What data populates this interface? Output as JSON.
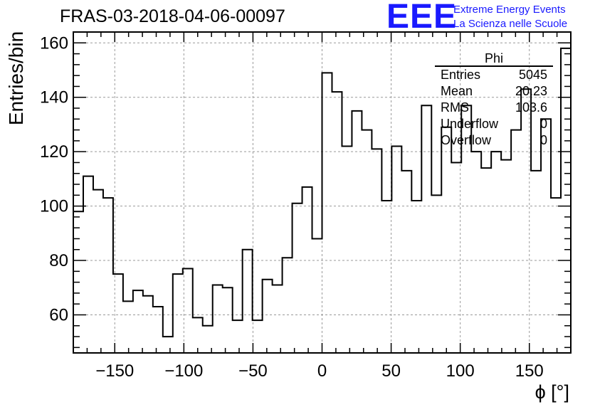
{
  "title": "FRAS-03-2018-04-06-00097",
  "logo": {
    "mark": "EEE",
    "line1": "Extreme Energy Events",
    "line2": "La Scienza nelle Scuole"
  },
  "stats": {
    "name": "Phi",
    "rows": [
      {
        "k": "Entries",
        "v": "5045"
      },
      {
        "k": "Mean",
        "v": "20.23"
      },
      {
        "k": "RMS",
        "v": "103.6"
      },
      {
        "k": "Underflow",
        "v": "0"
      },
      {
        "k": "Overflow",
        "v": "0"
      }
    ]
  },
  "colors": {
    "line": "#000000",
    "grid": "#999999",
    "accent": "#1a1aff"
  },
  "chart_data": {
    "type": "bar",
    "style": "step-histogram",
    "title": "FRAS-03-2018-04-06-00097",
    "xlabel": "ϕ [°]",
    "ylabel": "Entries/bin",
    "xlim": [
      -180,
      180
    ],
    "ylim": [
      46,
      164
    ],
    "bin_width": 7.2,
    "x_ticks": [
      -150,
      -100,
      -50,
      0,
      50,
      100,
      150
    ],
    "x_tick_labels": [
      "−150",
      "−100",
      "−50",
      "0",
      "50",
      "100",
      "150"
    ],
    "y_ticks": [
      60,
      80,
      100,
      120,
      140,
      160
    ],
    "y_tick_labels": [
      "60",
      "80",
      "100",
      "120",
      "140",
      "160"
    ],
    "grid": true,
    "values": [
      98,
      111,
      106,
      103,
      75,
      65,
      69,
      67,
      63,
      52,
      75,
      77,
      59,
      56,
      71,
      70,
      58,
      84,
      58,
      73,
      71,
      81,
      101,
      107,
      88,
      149,
      142,
      122,
      135,
      128,
      121,
      102,
      122,
      113,
      102,
      137,
      104,
      129,
      116,
      137,
      120,
      114,
      120,
      117,
      128,
      143,
      113,
      132,
      103,
      158
    ]
  }
}
